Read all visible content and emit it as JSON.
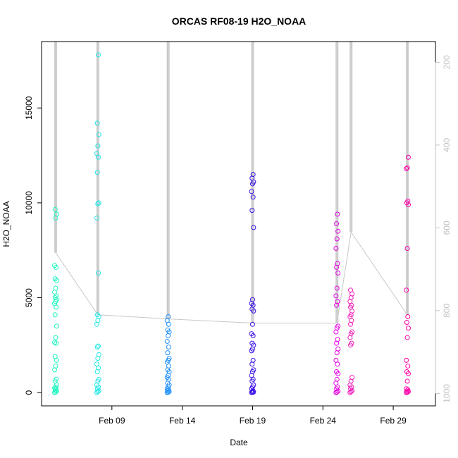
{
  "chart_data": {
    "type": "scatter",
    "title": "ORCAS RF08-19 H2O_NOAA",
    "xlabel": "Date",
    "ylabel": "H2O_NOAA",
    "xlim": [
      "2016-02-04",
      "2016-03-03"
    ],
    "ylim": [
      -700,
      18500
    ],
    "x_ticks": [
      "Feb 09",
      "Feb 14",
      "Feb 19",
      "Feb 24",
      "Feb 29"
    ],
    "y_ticks": [
      0,
      5000,
      10000,
      15000
    ],
    "right_axis": {
      "label": "",
      "reversed": true,
      "lim": [
        1030,
        150
      ],
      "ticks": [
        200,
        400,
        600,
        800,
        1000
      ],
      "color": "#c0c0c0"
    },
    "series": [
      {
        "color": "#1df5c1",
        "date": "2016-02-05",
        "values": [
          0,
          30,
          80,
          150,
          200,
          250,
          300,
          400,
          600,
          700,
          1200,
          1400,
          1700,
          1900,
          2600,
          2650,
          2900,
          3500,
          4100,
          4500,
          4700,
          4800,
          4900,
          5000,
          5100,
          5300,
          5500,
          5900,
          6000,
          6600,
          6700,
          9200,
          9400,
          9650
        ]
      },
      {
        "color": "#22e6e6",
        "date": "2016-02-08",
        "values": [
          0,
          50,
          100,
          200,
          300,
          400,
          600,
          700,
          1100,
          1300,
          1500,
          1800,
          2000,
          2400,
          2450,
          3600,
          3800,
          4000,
          4100,
          6300,
          9200,
          9950,
          10000,
          11600,
          12400,
          12600,
          13000,
          13600,
          14200,
          17800
        ]
      },
      {
        "color": "#1e90ff",
        "date": "2016-02-13",
        "values": [
          0,
          20,
          50,
          100,
          150,
          200,
          300,
          400,
          500,
          700,
          800,
          900,
          1100,
          1200,
          1400,
          1600,
          1700,
          1800,
          2100,
          2400,
          2700,
          3000,
          3200,
          3300,
          3600,
          3800,
          4000
        ]
      },
      {
        "color": "#3a10e6",
        "date": "2016-02-19",
        "values": [
          0,
          10,
          30,
          50,
          100,
          200,
          300,
          400,
          600,
          700,
          900,
          1100,
          1200,
          1500,
          1700,
          2200,
          2300,
          2500,
          2600,
          3000,
          3100,
          3600,
          4300,
          4400,
          4600,
          4700,
          4900,
          8700,
          9600,
          10300,
          10600,
          11000,
          11100,
          11300,
          11500
        ]
      },
      {
        "color": "#e600e6",
        "date": "2016-02-25",
        "values": [
          0,
          30,
          80,
          200,
          300,
          500,
          700,
          1000,
          1100,
          1500,
          1700,
          2100,
          2300,
          2600,
          2800,
          3200,
          3400,
          3500,
          4600,
          4800,
          5100,
          5500,
          6300,
          6600,
          6800,
          7600,
          8100,
          8500,
          8900,
          9400
        ]
      },
      {
        "color": "#ef1ab8",
        "date": "2016-02-26",
        "values": [
          0,
          50,
          100,
          200,
          300,
          400,
          600,
          800,
          2500,
          2600,
          2900,
          3100,
          3200,
          3600,
          3800,
          4000,
          4100,
          4300,
          4500,
          4600,
          4800,
          5000,
          5200,
          5400
        ]
      },
      {
        "color": "#ff00aa",
        "date": "2016-03-01",
        "values": [
          0,
          20,
          50,
          80,
          150,
          200,
          600,
          1000,
          1100,
          1400,
          1700,
          2900,
          3400,
          3700,
          4000,
          5400,
          7600,
          9900,
          10000,
          10100,
          11800,
          11850,
          12400
        ]
      }
    ],
    "pressure_trace": {
      "color": "#c8c8c8",
      "dates": [
        "2016-02-05",
        "2016-02-08",
        "2016-02-13",
        "2016-02-19",
        "2016-02-25",
        "2016-02-26",
        "2016-03-01"
      ],
      "low_level_pressure": [
        660,
        810,
        820,
        830,
        830,
        610,
        810
      ]
    }
  }
}
